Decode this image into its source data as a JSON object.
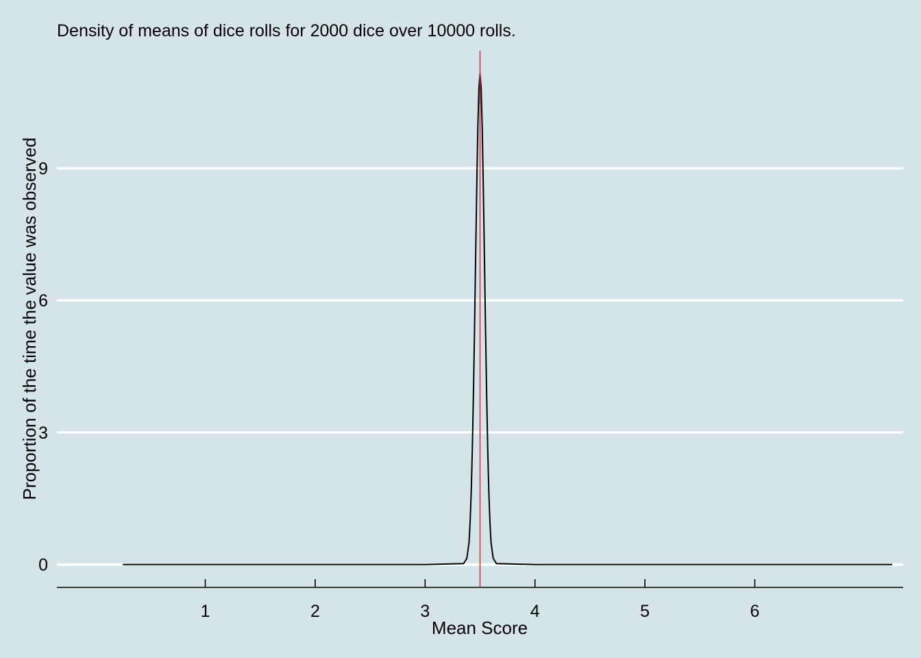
{
  "chart_data": {
    "type": "line",
    "title": "Density of means of dice rolls for 2000 dice over 10000 rolls.",
    "xlabel": "Mean Score",
    "ylabel": "Proportion of the time the value was observed",
    "xlim": [
      -0.35,
      7.35
    ],
    "ylim": [
      -0.52,
      11.67
    ],
    "x_ticks": [
      1,
      2,
      3,
      4,
      5,
      6
    ],
    "y_ticks": [
      0,
      3,
      6,
      9
    ],
    "grid": "horizontal-major",
    "legend": "none",
    "reference_line": {
      "axis": "x",
      "value": 3.5,
      "color": "#d2352c"
    },
    "series": [
      {
        "x": [
          0.25,
          1.0,
          2.0,
          3.0,
          3.35,
          3.38,
          3.4,
          3.41,
          3.42,
          3.43,
          3.44,
          3.45,
          3.46,
          3.47,
          3.48,
          3.49,
          3.5,
          3.51,
          3.52,
          3.53,
          3.54,
          3.55,
          3.56,
          3.57,
          3.58,
          3.59,
          3.6,
          3.62,
          3.65,
          4.0,
          5.0,
          6.0,
          7.25
        ],
        "y": [
          0,
          0,
          0,
          0,
          0.02,
          0.14,
          0.5,
          0.97,
          1.65,
          2.63,
          3.88,
          5.36,
          6.97,
          8.56,
          9.92,
          10.83,
          11.15,
          10.83,
          9.92,
          8.56,
          6.97,
          5.36,
          3.88,
          2.63,
          1.65,
          0.97,
          0.5,
          0.14,
          0.02,
          0,
          0,
          0,
          0
        ],
        "color": "#000000"
      }
    ]
  },
  "colors": {
    "background": "#d5e4eb",
    "grid": "#ffffff",
    "reference": "#d2352c"
  }
}
